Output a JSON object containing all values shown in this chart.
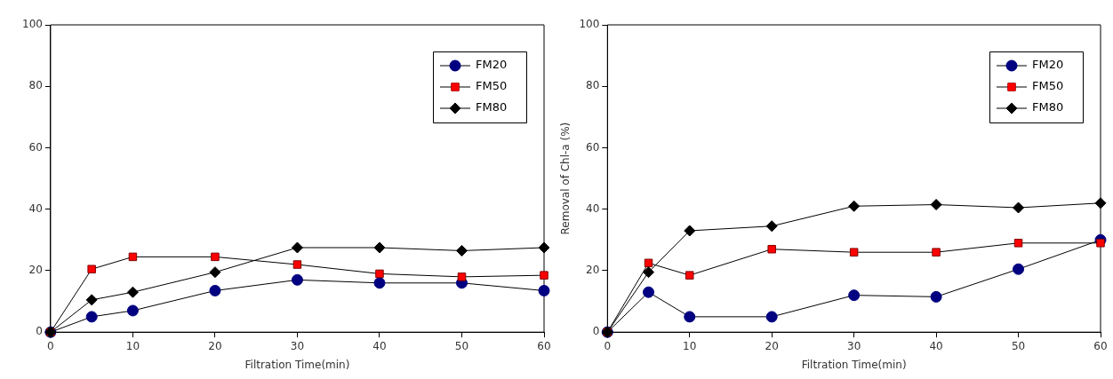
{
  "chart_data": [
    {
      "type": "line",
      "xlabel": "Filtration Time(min)",
      "x": [
        0,
        5,
        10,
        20,
        30,
        40,
        50,
        60
      ],
      "xlim": [
        0,
        60
      ],
      "xticks": [
        0,
        10,
        20,
        30,
        40,
        50,
        60
      ],
      "ylim": [
        0,
        100
      ],
      "yticks": [
        0,
        20,
        40,
        60,
        80,
        100
      ],
      "grid": false,
      "legend": "top right",
      "series": [
        {
          "name": "FM20",
          "color": "#000080",
          "marker": "circle",
          "values": [
            0,
            5,
            7,
            13.5,
            17,
            16,
            16,
            13.5
          ]
        },
        {
          "name": "FM50",
          "color": "#ff0000",
          "marker": "square",
          "values": [
            0,
            20.5,
            24.5,
            24.5,
            22,
            19,
            18,
            18.5
          ]
        },
        {
          "name": "FM80",
          "color": "#000000",
          "marker": "diamond",
          "values": [
            0,
            10.5,
            13,
            19.5,
            27.5,
            27.5,
            26.5,
            27.5
          ]
        }
      ]
    },
    {
      "type": "line",
      "xlabel": "Filtration Time(min)",
      "ylabel": "Removal of Chl-a (%)",
      "x": [
        0,
        5,
        10,
        20,
        30,
        40,
        50,
        60
      ],
      "xlim": [
        0,
        60
      ],
      "xticks": [
        0,
        10,
        20,
        30,
        40,
        50,
        60
      ],
      "ylim": [
        0,
        100
      ],
      "yticks": [
        0,
        20,
        40,
        60,
        80,
        100
      ],
      "grid": false,
      "legend": "top right",
      "series": [
        {
          "name": "FM20",
          "color": "#000080",
          "marker": "circle",
          "values": [
            0,
            13,
            5,
            5,
            12,
            11.5,
            20.5,
            30
          ]
        },
        {
          "name": "FM50",
          "color": "#ff0000",
          "marker": "square",
          "values": [
            0,
            22.5,
            18.5,
            27,
            26,
            26,
            29,
            29
          ]
        },
        {
          "name": "FM80",
          "color": "#000000",
          "marker": "diamond",
          "values": [
            0,
            19.5,
            33,
            34.5,
            41,
            41.5,
            40.5,
            42
          ]
        }
      ]
    }
  ]
}
